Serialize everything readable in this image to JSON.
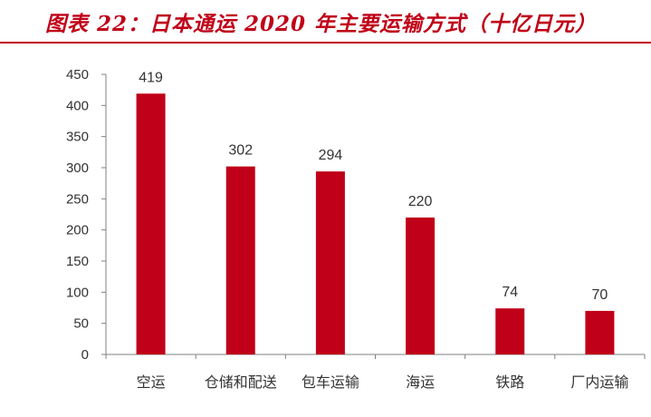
{
  "title": "图表 22：日本通运 2020 年主要运输方式（十亿日元）",
  "colors": {
    "accent": "#c00018",
    "bar": "#c00018",
    "axis": "#808080",
    "text": "#333333"
  },
  "chart_data": {
    "type": "bar",
    "categories": [
      "空运",
      "仓储和配送",
      "包车运输",
      "海运",
      "铁路",
      "厂内运输"
    ],
    "values": [
      419,
      302,
      294,
      220,
      74,
      70
    ],
    "y_ticks": [
      0,
      50,
      100,
      150,
      200,
      250,
      300,
      350,
      400,
      450
    ],
    "ylim": [
      0,
      450
    ],
    "xlabel": "",
    "ylabel": "",
    "grid": false,
    "legend": "none",
    "data_labels": true
  }
}
